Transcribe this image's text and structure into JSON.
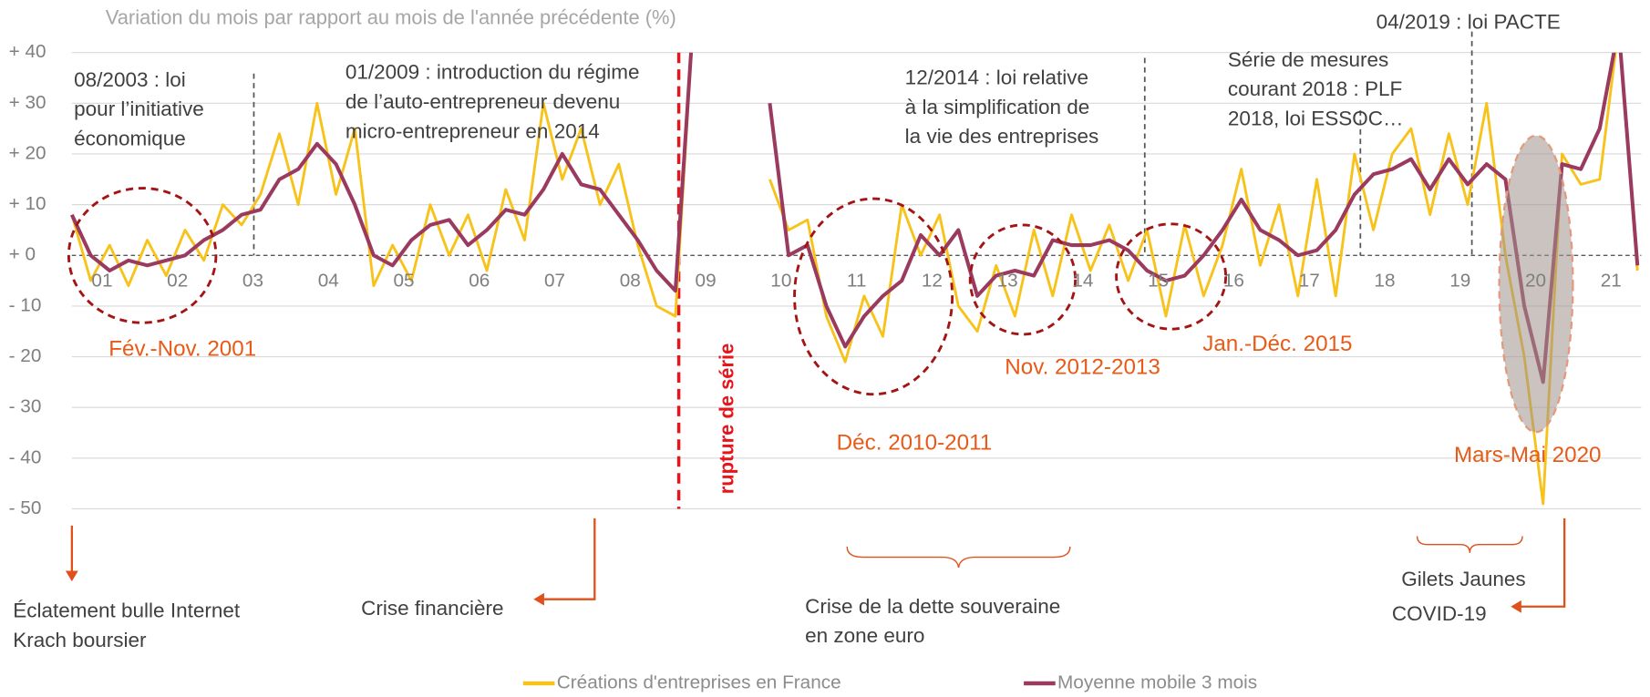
{
  "chart_data": {
    "type": "line",
    "title": "Variation du mois par rapport au mois de l'année précédente (%)",
    "x": [
      2001.1,
      2001.35,
      2001.6,
      2001.85,
      2002.1,
      2002.35,
      2002.6,
      2002.85,
      2003.1,
      2003.35,
      2003.6,
      2003.85,
      2004.1,
      2004.35,
      2004.6,
      2004.85,
      2005.1,
      2005.35,
      2005.6,
      2005.85,
      2006.1,
      2006.35,
      2006.6,
      2006.85,
      2007.1,
      2007.35,
      2007.6,
      2007.85,
      2008.1,
      2008.35,
      2008.6,
      2008.85,
      2009.1,
      2009.35,
      2009.6,
      2009.85,
      2010.1,
      2010.35,
      2010.6,
      2010.85,
      2011.1,
      2011.35,
      2011.6,
      2011.85,
      2012.1,
      2012.35,
      2012.6,
      2012.85,
      2013.1,
      2013.35,
      2013.6,
      2013.85,
      2014.1,
      2014.35,
      2014.6,
      2014.85,
      2015.1,
      2015.35,
      2015.6,
      2015.85,
      2016.1,
      2016.35,
      2016.6,
      2016.85,
      2017.1,
      2017.35,
      2017.6,
      2017.85,
      2018.1,
      2018.35,
      2018.6,
      2018.85,
      2019.1,
      2019.35,
      2019.6,
      2019.85,
      2020.1,
      2020.35,
      2020.6,
      2020.85,
      2021.1,
      2021.35,
      2021.6,
      2021.85
    ],
    "series": [
      {
        "name": "Créations d'entreprises en France",
        "color": "#f7c31b",
        "values": [
          8,
          -5,
          2,
          -6,
          3,
          -4,
          5,
          -1,
          10,
          6,
          12,
          24,
          10,
          30,
          12,
          25,
          -6,
          2,
          -5,
          10,
          0,
          8,
          -3,
          13,
          3,
          30,
          15,
          25,
          10,
          18,
          2,
          -10,
          -12,
          50,
          null,
          null,
          null,
          15,
          5,
          7,
          -12,
          -21,
          -8,
          -16,
          10,
          0,
          8,
          -10,
          -15,
          -2,
          -12,
          5,
          -8,
          8,
          -3,
          6,
          -5,
          5,
          -12,
          6,
          -8,
          2,
          17,
          -2,
          10,
          -8,
          15,
          -8,
          20,
          5,
          20,
          25,
          8,
          24,
          10,
          30,
          0,
          -20,
          -49,
          20,
          14,
          15,
          45,
          -3
        ]
      },
      {
        "name": "Moyenne mobile 3 mois",
        "color": "#9b3a5f",
        "values": [
          8,
          0,
          -3,
          -1,
          -2,
          -1,
          0,
          3,
          5,
          8,
          9,
          15,
          17,
          22,
          18,
          10,
          0,
          -2,
          3,
          6,
          7,
          2,
          5,
          9,
          8,
          13,
          20,
          14,
          13,
          8,
          3,
          -3,
          -7,
          50,
          null,
          null,
          null,
          30,
          0,
          2,
          -10,
          -18,
          -12,
          -8,
          -5,
          4,
          0,
          5,
          -8,
          -4,
          -3,
          -4,
          3,
          2,
          2,
          3,
          1,
          -3,
          -5,
          -4,
          0,
          5,
          11,
          5,
          3,
          0,
          1,
          5,
          12,
          16,
          17,
          19,
          13,
          19,
          14,
          18,
          15,
          -10,
          -25,
          18,
          17,
          25,
          45,
          -2
        ]
      }
    ],
    "xlim": [
      2001.1,
      2021.9
    ],
    "xticks": [
      {
        "value": 2001.5,
        "label": "01"
      },
      {
        "value": 2002.5,
        "label": "02"
      },
      {
        "value": 2003.5,
        "label": "03"
      },
      {
        "value": 2004.5,
        "label": "04"
      },
      {
        "value": 2005.5,
        "label": "05"
      },
      {
        "value": 2006.5,
        "label": "06"
      },
      {
        "value": 2007.5,
        "label": "07"
      },
      {
        "value": 2008.5,
        "label": "08"
      },
      {
        "value": 2009.5,
        "label": "09"
      },
      {
        "value": 2010.5,
        "label": "10"
      },
      {
        "value": 2011.5,
        "label": "11"
      },
      {
        "value": 2012.5,
        "label": "12"
      },
      {
        "value": 2013.5,
        "label": "13"
      },
      {
        "value": 2014.5,
        "label": "14"
      },
      {
        "value": 2015.5,
        "label": "15"
      },
      {
        "value": 2016.5,
        "label": "16"
      },
      {
        "value": 2017.5,
        "label": "17"
      },
      {
        "value": 2018.5,
        "label": "18"
      },
      {
        "value": 2019.5,
        "label": "19"
      },
      {
        "value": 2020.5,
        "label": "20"
      },
      {
        "value": 2021.5,
        "label": "21"
      }
    ],
    "ylim": [
      -50,
      40
    ],
    "yticks": [
      {
        "value": 40,
        "label": "+ 40"
      },
      {
        "value": 30,
        "label": "+ 30"
      },
      {
        "value": 20,
        "label": "+ 20"
      },
      {
        "value": 10,
        "label": "+ 10"
      },
      {
        "value": 0,
        "label": "+ 0"
      },
      {
        "value": -10,
        "label": "- 10"
      },
      {
        "value": -20,
        "label": "- 20"
      },
      {
        "value": -30,
        "label": "- 30"
      },
      {
        "value": -40,
        "label": "- 40"
      },
      {
        "value": -50,
        "label": "- 50"
      }
    ],
    "grid": true,
    "legend": "bottom",
    "annotations": [
      {
        "lines": [
          "08/2003 : loi",
          "pour l’initiative",
          "économique"
        ]
      },
      {
        "lines": [
          "01/2009 : introduction du régime",
          "de l’auto-entrepreneur devenu",
          "micro-entrepreneur en 2014"
        ]
      },
      {
        "lines": [
          "12/2014 : loi relative",
          "à la simplification de",
          "la vie des entreprises"
        ]
      },
      {
        "lines": [
          "Série de mesures",
          "courant 2018 : PLF",
          "2018, loi ESSOC…"
        ]
      },
      {
        "lines": [
          "04/2019 : loi PACTE"
        ]
      }
    ],
    "highlights": [
      "Fév.-Nov. 2001",
      "Déc. 2010-2011",
      "Nov. 2012-2013",
      "Jan.-Déc. 2015",
      "Mars-Mai 2020"
    ],
    "break_label": "rupture de série",
    "events": [
      {
        "lines": [
          "Éclatement bulle Internet",
          "Krach boursier"
        ]
      },
      {
        "lines": [
          "Crise financière"
        ]
      },
      {
        "lines": [
          "Crise de la dette souveraine",
          "en zone euro"
        ]
      },
      {
        "lines": [
          "Gilets Jaunes"
        ]
      },
      {
        "lines": [
          "COVID-19"
        ]
      }
    ]
  }
}
